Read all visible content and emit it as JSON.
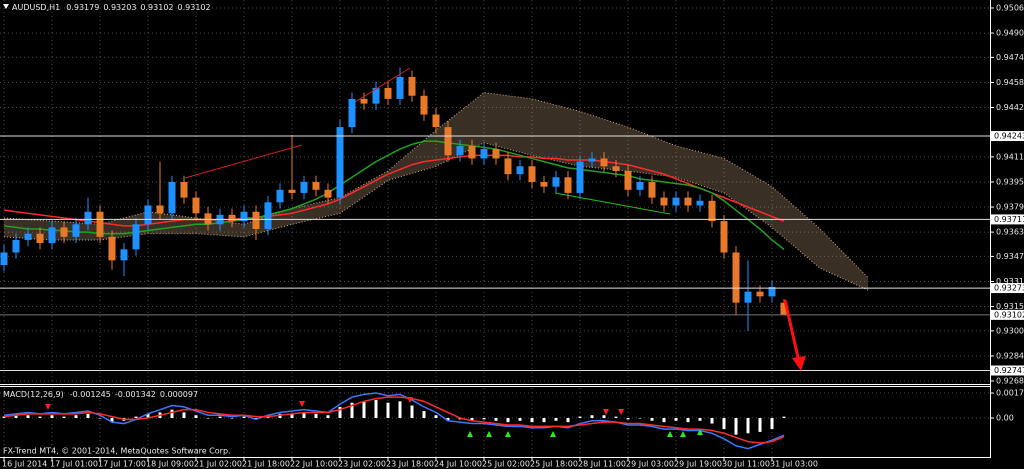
{
  "chart_data": [
    {
      "type": "candlestick",
      "title": "AUDUSD,H1",
      "header_values": [
        0.93179,
        0.93203,
        0.93102,
        0.93102
      ],
      "up_color": "#1e90ff",
      "down_color": "#e8782a",
      "grid": true,
      "open": [
        0.9342,
        0.935,
        0.9358,
        0.9362,
        0.9356,
        0.9366,
        0.936,
        0.9368,
        0.9376,
        0.936,
        0.9345,
        0.9352,
        0.9368,
        0.938,
        0.9375,
        0.9395,
        0.9385,
        0.9375,
        0.9368,
        0.9374,
        0.937,
        0.9376,
        0.9365,
        0.9382,
        0.939,
        0.9388,
        0.9395,
        0.939,
        0.9385,
        0.943,
        0.9448,
        0.9445,
        0.9455,
        0.9448,
        0.9462,
        0.945,
        0.9438,
        0.943,
        0.9412,
        0.9418,
        0.941,
        0.9416,
        0.941,
        0.94,
        0.9405,
        0.9395,
        0.9392,
        0.9398,
        0.9388,
        0.9408,
        0.941,
        0.9405,
        0.9402,
        0.939,
        0.9395,
        0.9385,
        0.938,
        0.9385,
        0.938,
        0.9383,
        0.937,
        0.935,
        0.9318,
        0.9325,
        0.9322,
        0.93179
      ],
      "high": [
        0.9355,
        0.9362,
        0.9366,
        0.9366,
        0.937,
        0.937,
        0.9372,
        0.9385,
        0.938,
        0.9364,
        0.9356,
        0.9372,
        0.9384,
        0.9408,
        0.9399,
        0.9399,
        0.9389,
        0.9379,
        0.9378,
        0.9378,
        0.938,
        0.938,
        0.9386,
        0.9394,
        0.9425,
        0.9399,
        0.9399,
        0.9394,
        0.9435,
        0.9452,
        0.9452,
        0.9459,
        0.9459,
        0.9468,
        0.9466,
        0.9454,
        0.9442,
        0.9434,
        0.9422,
        0.9422,
        0.942,
        0.942,
        0.9414,
        0.9409,
        0.9409,
        0.9399,
        0.9402,
        0.9402,
        0.9412,
        0.9414,
        0.9414,
        0.9409,
        0.9406,
        0.9399,
        0.9399,
        0.9389,
        0.9389,
        0.9389,
        0.9387,
        0.9387,
        0.9374,
        0.9354,
        0.9345,
        0.9329,
        0.9332,
        0.93203
      ],
      "low": [
        0.9338,
        0.9346,
        0.9354,
        0.9352,
        0.9352,
        0.9356,
        0.9356,
        0.9364,
        0.9356,
        0.9339,
        0.9335,
        0.9348,
        0.9364,
        0.9371,
        0.9371,
        0.9381,
        0.9371,
        0.9364,
        0.9364,
        0.9366,
        0.9366,
        0.9358,
        0.9361,
        0.9378,
        0.9384,
        0.9384,
        0.9386,
        0.9381,
        0.9381,
        0.9426,
        0.9441,
        0.9441,
        0.9444,
        0.9444,
        0.9446,
        0.9434,
        0.9426,
        0.9408,
        0.9408,
        0.9406,
        0.9406,
        0.9406,
        0.9396,
        0.9396,
        0.9391,
        0.9388,
        0.9388,
        0.9384,
        0.9384,
        0.9404,
        0.9401,
        0.9398,
        0.9386,
        0.9386,
        0.9381,
        0.9376,
        0.9376,
        0.9376,
        0.9376,
        0.9366,
        0.9346,
        0.931,
        0.93,
        0.9318,
        0.9318,
        0.93102
      ],
      "close": [
        0.935,
        0.9358,
        0.9362,
        0.9356,
        0.9366,
        0.936,
        0.9368,
        0.9376,
        0.936,
        0.9345,
        0.9352,
        0.9368,
        0.938,
        0.9375,
        0.9395,
        0.9385,
        0.9375,
        0.9368,
        0.9374,
        0.937,
        0.9376,
        0.9365,
        0.9382,
        0.939,
        0.9388,
        0.9395,
        0.939,
        0.9385,
        0.943,
        0.9448,
        0.9445,
        0.9455,
        0.9448,
        0.9462,
        0.945,
        0.9438,
        0.943,
        0.9412,
        0.9418,
        0.941,
        0.9416,
        0.941,
        0.94,
        0.9405,
        0.9395,
        0.9392,
        0.9398,
        0.9388,
        0.9408,
        0.941,
        0.9405,
        0.9402,
        0.939,
        0.9395,
        0.9385,
        0.938,
        0.9385,
        0.938,
        0.9383,
        0.937,
        0.935,
        0.9318,
        0.9325,
        0.9322,
        0.9328,
        0.93102
      ],
      "lines": [
        {
          "color": "#ff2a2a",
          "values": [
            0.9377,
            0.9376,
            0.9375,
            0.9374,
            0.9373,
            0.9372,
            0.9371,
            0.937,
            0.9369,
            0.9368,
            0.9367,
            0.9367,
            0.9368,
            0.9369,
            0.937,
            0.9371,
            0.9371,
            0.9371,
            0.9371,
            0.9371,
            0.9372,
            0.9372,
            0.9373,
            0.9374,
            0.9375,
            0.9377,
            0.9379,
            0.9381,
            0.9384,
            0.9388,
            0.9392,
            0.9396,
            0.94,
            0.9403,
            0.9406,
            0.9408,
            0.9409,
            0.941,
            0.9411,
            0.9412,
            0.9412,
            0.9412,
            0.9412,
            0.9411,
            0.9411,
            0.941,
            0.941,
            0.9409,
            0.9409,
            0.9409,
            0.9408,
            0.9407,
            0.9406,
            0.9404,
            0.9402,
            0.94,
            0.9397,
            0.9394,
            0.9391,
            0.9388,
            0.9385,
            0.9382,
            0.9379,
            0.9376,
            0.9373,
            0.937
          ]
        },
        {
          "color": "#22a022",
          "values": [
            0.9367,
            0.9366,
            0.9365,
            0.9365,
            0.9364,
            0.9364,
            0.9363,
            0.9363,
            0.9362,
            0.9362,
            0.9362,
            0.9363,
            0.9364,
            0.9365,
            0.9366,
            0.9367,
            0.9368,
            0.9368,
            0.9369,
            0.937,
            0.9371,
            0.9372,
            0.9374,
            0.9376,
            0.9378,
            0.9381,
            0.9384,
            0.9388,
            0.9393,
            0.9398,
            0.9403,
            0.9408,
            0.9412,
            0.9416,
            0.9419,
            0.9421,
            0.9421,
            0.942,
            0.9419,
            0.9418,
            0.9417,
            0.9416,
            0.9414,
            0.9412,
            0.941,
            0.9408,
            0.9406,
            0.9404,
            0.9403,
            0.9402,
            0.9401,
            0.94,
            0.9399,
            0.9397,
            0.9396,
            0.9395,
            0.9394,
            0.9393,
            0.9391,
            0.9388,
            0.9383,
            0.9377,
            0.9371,
            0.9365,
            0.9358,
            0.9352
          ]
        }
      ],
      "cloud": {
        "color": "#d2a882",
        "x": [
          0,
          4,
          8,
          12,
          16,
          20,
          24,
          28,
          32,
          36,
          40,
          44,
          48,
          52,
          56,
          60,
          64,
          68,
          72
        ],
        "upper": [
          0.9372,
          0.937,
          0.9368,
          0.9376,
          0.9372,
          0.9368,
          0.9378,
          0.9385,
          0.9402,
          0.9428,
          0.9452,
          0.9448,
          0.944,
          0.943,
          0.9418,
          0.941,
          0.9392,
          0.9365,
          0.9334
        ],
        "lower": [
          0.936,
          0.9358,
          0.9358,
          0.9362,
          0.9362,
          0.936,
          0.9368,
          0.9375,
          0.9396,
          0.9405,
          0.942,
          0.9412,
          0.9405,
          0.9402,
          0.9398,
          0.9388,
          0.9366,
          0.934,
          0.9326
        ]
      },
      "levels": [
        0.94243,
        0.93711,
        0.93273,
        0.92747
      ],
      "price_label": 0.93102,
      "ylim": [
        0.9268,
        0.9506
      ],
      "yticks": [
        {
          "value": 0.9506,
          "label": "0.95060"
        },
        {
          "value": 0.949,
          "label": "0.94900"
        },
        0.94745,
        0.94585,
        0.94425,
        {
          "value": 0.9411,
          "label": "0.94110"
        },
        {
          "value": 0.9395,
          "label": "0.93950"
        },
        {
          "value": 0.9379,
          "label": "0.93790"
        },
        {
          "value": 0.9363,
          "label": "0.93630"
        },
        0.93475,
        0.93315,
        0.93155,
        {
          "value": 0.93,
          "label": "0.93000"
        },
        {
          "value": 0.9284,
          "label": "0.92840"
        },
        {
          "value": 0.9268,
          "label": "0.92680"
        }
      ],
      "xticks": [
        {
          "value": 0,
          "label": "16 Jul 2014"
        },
        {
          "value": 4,
          "label": "17 Jul 01:00"
        },
        {
          "value": 8,
          "label": "17 Jul 17:00"
        },
        {
          "value": 12,
          "label": "18 Jul 09:00"
        },
        {
          "value": 16,
          "label": "21 Jul 02:00"
        },
        {
          "value": 20,
          "label": "21 Jul 18:00"
        },
        {
          "value": 24,
          "label": "22 Jul 10:00"
        },
        {
          "value": 28,
          "label": "23 Jul 02:00"
        },
        {
          "value": 32,
          "label": "23 Jul 18:00"
        },
        {
          "value": 36,
          "label": "24 Jul 10:00"
        },
        {
          "value": 40,
          "label": "25 Jul 02:00"
        },
        {
          "value": 44,
          "label": "25 Jul 18:00"
        },
        {
          "value": 48,
          "label": "28 Jul 11:00"
        },
        {
          "value": 52,
          "label": "29 Jul 03:00"
        },
        {
          "value": 56,
          "label": "29 Jul 19:00"
        },
        {
          "value": 60,
          "label": "30 Jul 11:00"
        },
        {
          "value": 64,
          "label": "31 Jul 03:00"
        }
      ]
    },
    {
      "type": "macd",
      "title": "MACD(12,26,9)",
      "header_values": [
        -0.001245,
        -0.001342,
        9.7e-05
      ],
      "annotation": "FX-Trend MT4, © 2001-2014, MetaQuotes Software Corp.",
      "histogram": {
        "color": "#ffffff",
        "values": [
          0.0001,
          0.0002,
          0.0002,
          0.0001,
          0.0002,
          0.0001,
          0.0002,
          0.0003,
          0.0,
          -0.0003,
          -0.0002,
          0.0001,
          0.0003,
          0.0004,
          0.0006,
          0.0004,
          0.0002,
          0.0,
          0.0001,
          0.0,
          0.0001,
          -0.0001,
          0.0002,
          0.0003,
          0.0003,
          0.0004,
          0.0003,
          0.0002,
          0.0008,
          0.0011,
          0.0012,
          0.0013,
          0.0011,
          0.0012,
          0.0009,
          0.0005,
          0.0002,
          -0.0002,
          -0.0001,
          -0.0002,
          -0.0001,
          -0.0002,
          -0.0003,
          -0.0002,
          -0.0003,
          -0.0003,
          -0.0002,
          -0.0003,
          0.0001,
          0.0002,
          0.0002,
          0.0001,
          -0.0001,
          0.0,
          -0.0002,
          -0.0003,
          -0.0002,
          -0.0003,
          -0.0002,
          -0.0004,
          -0.0008,
          -0.0012,
          -0.0011,
          -0.001,
          -0.0008,
          9.7e-05
        ]
      },
      "lines": [
        {
          "color": "#3a78ff",
          "values": [
            0.0002,
            0.0003,
            0.0004,
            0.0003,
            0.0004,
            0.0003,
            0.0004,
            0.0005,
            0.0002,
            -0.0003,
            -0.0004,
            -0.0001,
            0.0003,
            0.0006,
            0.0009,
            0.0008,
            0.0005,
            0.0002,
            0.0002,
            0.0001,
            0.0002,
            -0.0001,
            0.0002,
            0.0004,
            0.0005,
            0.0006,
            0.0005,
            0.0004,
            0.001,
            0.0015,
            0.0017,
            0.0018,
            0.0016,
            0.0017,
            0.0013,
            0.0008,
            0.0004,
            -0.0002,
            -0.0003,
            -0.0004,
            -0.0004,
            -0.0005,
            -0.0006,
            -0.0006,
            -0.0007,
            -0.0007,
            -0.0006,
            -0.0007,
            -0.0004,
            -0.0002,
            -0.0002,
            -0.0003,
            -0.0005,
            -0.0005,
            -0.0006,
            -0.0008,
            -0.0008,
            -0.0009,
            -0.0009,
            -0.0011,
            -0.0015,
            -0.002,
            -0.0022,
            -0.0019,
            -0.0016,
            -0.001245
          ]
        },
        {
          "color": "#ff2a2a",
          "values": [
            0.0001,
            0.0002,
            0.0003,
            0.0003,
            0.0003,
            0.0003,
            0.0003,
            0.0004,
            0.0003,
            0.0001,
            -0.0001,
            -0.0001,
            0.0,
            0.0002,
            0.0004,
            0.0006,
            0.0006,
            0.0004,
            0.0003,
            0.0002,
            0.0002,
            0.0001,
            0.0001,
            0.0002,
            0.0003,
            0.0004,
            0.0004,
            0.0004,
            0.0006,
            0.0009,
            0.0012,
            0.0014,
            0.0015,
            0.0015,
            0.0014,
            0.0012,
            0.0008,
            0.0004,
            0.0,
            -0.0002,
            -0.0003,
            -0.0004,
            -0.0005,
            -0.0005,
            -0.0006,
            -0.0006,
            -0.0006,
            -0.0006,
            -0.0005,
            -0.0004,
            -0.0003,
            -0.0003,
            -0.0004,
            -0.0004,
            -0.0005,
            -0.0006,
            -0.0007,
            -0.0008,
            -0.0008,
            -0.0009,
            -0.0011,
            -0.0014,
            -0.0017,
            -0.0018,
            -0.0017,
            -0.001342
          ]
        }
      ],
      "ylim": [
        -0.00288,
        0.00216
      ],
      "yticks": [
        0.001797,
        {
          "value": 0,
          "label": "0.00"
        }
      ]
    }
  ]
}
